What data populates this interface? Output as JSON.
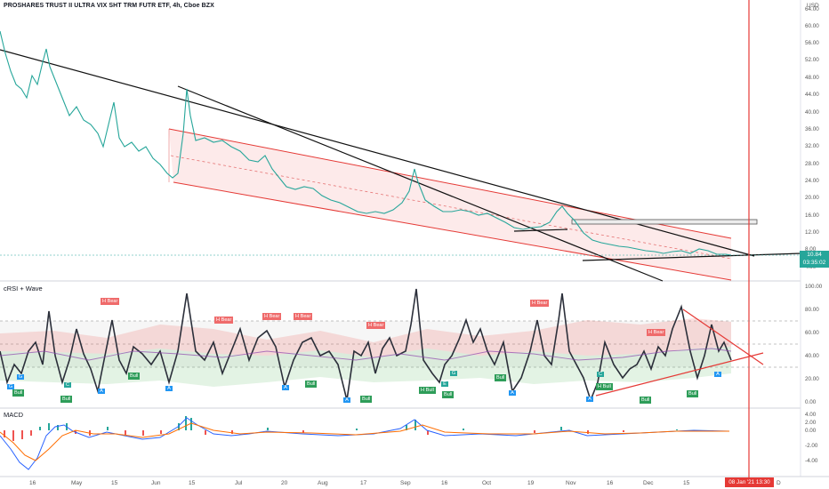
{
  "header": {
    "title": "PROSHARES TRUST II ULTRA VIX SHT TRM FUTR ETF, 4h, Cboe BZX",
    "currency": "USD"
  },
  "price_axis": [
    "64.00",
    "60.00",
    "56.00",
    "52.00",
    "48.00",
    "44.00",
    "40.00",
    "36.00",
    "32.00",
    "28.00",
    "24.00",
    "20.00",
    "16.00",
    "12.00",
    "8.00",
    "4.00"
  ],
  "price_badge": {
    "price": "10.84",
    "timer": "03:35:02"
  },
  "rsi_pane": {
    "label": "cRSI + Wave",
    "axis": [
      "100.00",
      "80.00",
      "60.00",
      "40.00",
      "20.00",
      "0.00"
    ],
    "bear_labels": [
      "H Bear",
      "H Bear",
      "H Bear",
      "H Bear",
      "H Bear",
      "H Bear",
      "H Bear"
    ],
    "bull_labels": [
      "Bull",
      "Bull",
      "Bull",
      "Bull",
      "Bull",
      "H Bull",
      "Bull",
      "Bull",
      "H Bull",
      "Bull",
      "Bull"
    ],
    "marker_letters": [
      "G",
      "G",
      "C",
      "A",
      "A",
      "A",
      "A",
      "E",
      "G",
      "A",
      "C",
      "A",
      "A"
    ]
  },
  "macd_pane": {
    "label": "MACD",
    "axis": [
      "4.00",
      "2.00",
      "0.00",
      "-2.00",
      "-4.00"
    ]
  },
  "time_axis": [
    {
      "label": "16"
    },
    {
      "label": "May"
    },
    {
      "label": "15"
    },
    {
      "label": "Jun"
    },
    {
      "label": "15"
    },
    {
      "label": "Jul"
    },
    {
      "label": "20"
    },
    {
      "label": "Aug"
    },
    {
      "label": "17"
    },
    {
      "label": "Sep"
    },
    {
      "label": "16"
    },
    {
      "label": "Oct"
    },
    {
      "label": "19"
    },
    {
      "label": "Nov"
    },
    {
      "label": "16"
    },
    {
      "label": "Dec"
    },
    {
      "label": "15"
    },
    {
      "label": "D"
    }
  ],
  "date_badge": {
    "date": "08 Jan '21",
    "time": "13:30"
  },
  "colors": {
    "up": "#26a69a",
    "down": "#ef5350",
    "channel": "#e53935",
    "trend": "#000000",
    "rsi_line": "#37474f",
    "macd": "#2962ff",
    "signal": "#ff6d00",
    "bull_tag": "#2e9d59",
    "bear_tag": "#ef6b6b",
    "letter_tag": "#2196f3"
  }
}
